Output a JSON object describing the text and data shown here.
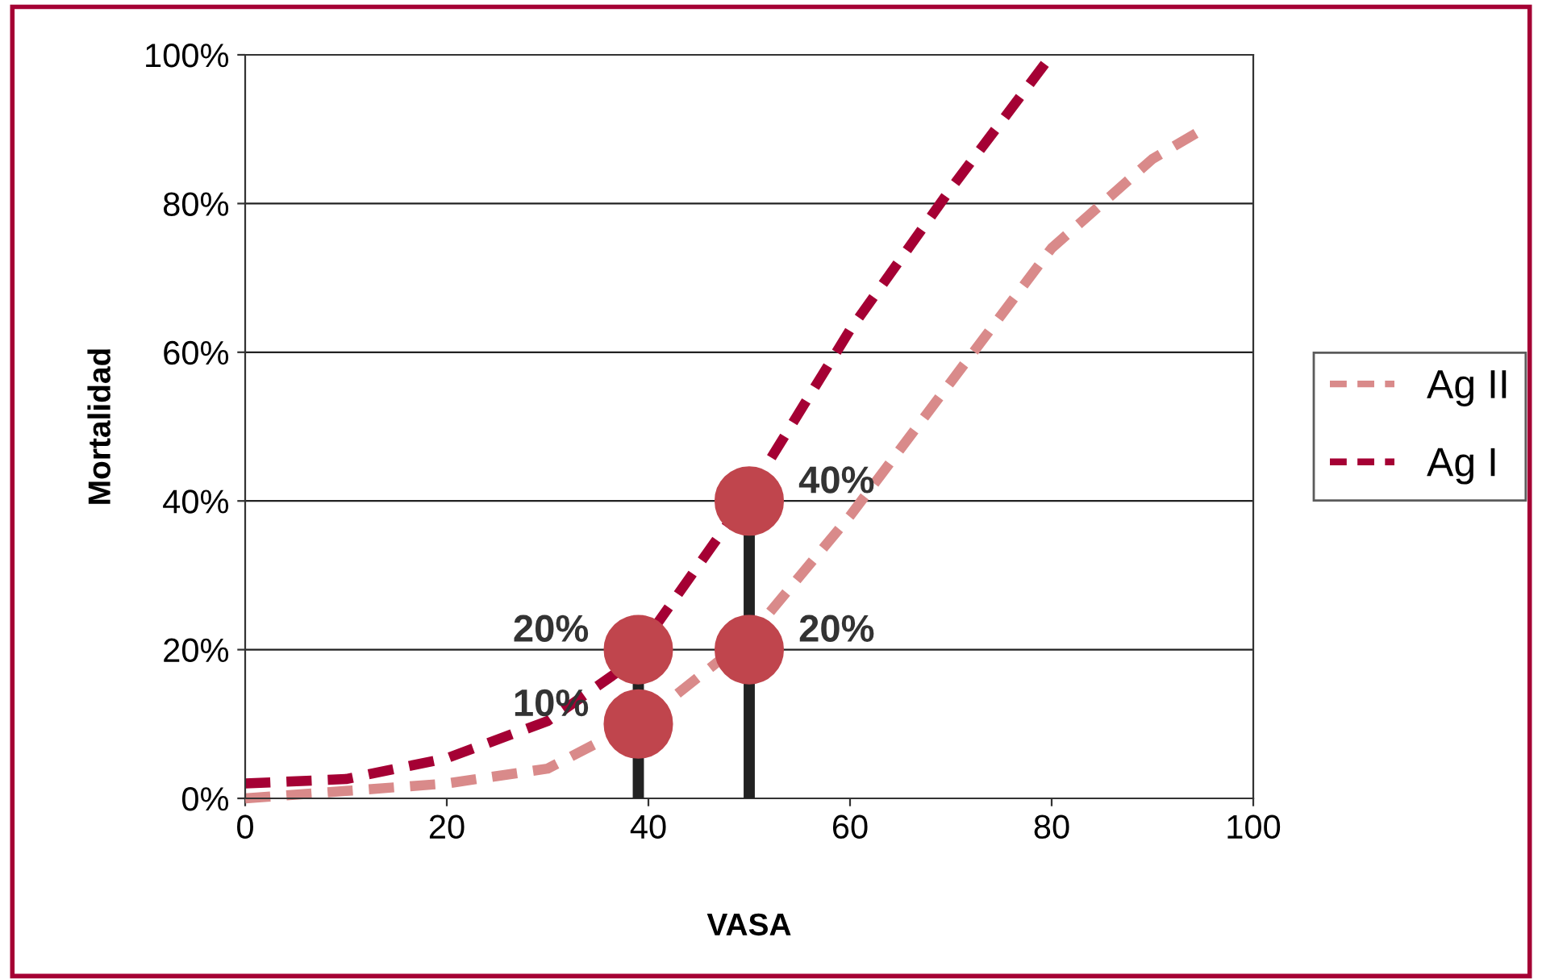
{
  "chart_data": {
    "type": "line",
    "xlabel": "VASA",
    "ylabel": "Mortalidad",
    "xlim": [
      0,
      100
    ],
    "xticks": [
      0,
      20,
      40,
      60,
      80,
      100
    ],
    "ylim": [
      0,
      100
    ],
    "yticks": [
      {
        "value": 0,
        "label": "0%"
      },
      {
        "value": 20,
        "label": "20%"
      },
      {
        "value": 40,
        "label": "40%"
      },
      {
        "value": 60,
        "label": "60%"
      },
      {
        "value": 80,
        "label": "80%"
      },
      {
        "value": 100,
        "label": "100%"
      }
    ],
    "grid": "y",
    "legend": "right",
    "line_style": "dashed",
    "marker": "none",
    "series": [
      {
        "name": "Ag II",
        "color": "#d98a8a",
        "x": [
          0,
          10,
          20,
          30,
          40,
          50,
          60,
          70,
          80,
          90,
          95
        ],
        "values": [
          0,
          1,
          2,
          4,
          11,
          21.7,
          38,
          56,
          74,
          86,
          90
        ]
      },
      {
        "name": "Ag I",
        "color": "#a50034",
        "x": [
          0,
          10,
          20,
          30,
          38,
          50,
          60,
          70,
          80
        ],
        "values": [
          2,
          2.6,
          5.4,
          10.4,
          18,
          41,
          63,
          82,
          100
        ]
      },
      {
        "type": "lollipop",
        "color": "#c0454d",
        "marker": "circle",
        "x": [
          39,
          50
        ],
        "values": [
          20,
          40
        ],
        "value_labels": [
          "20%",
          "40%"
        ]
      },
      {
        "type": "scatter",
        "marker": "circle",
        "color": "#c0454d",
        "x": [
          39,
          50
        ],
        "values": [
          10,
          20
        ],
        "value_labels": [
          "10%",
          "20%"
        ]
      }
    ]
  }
}
